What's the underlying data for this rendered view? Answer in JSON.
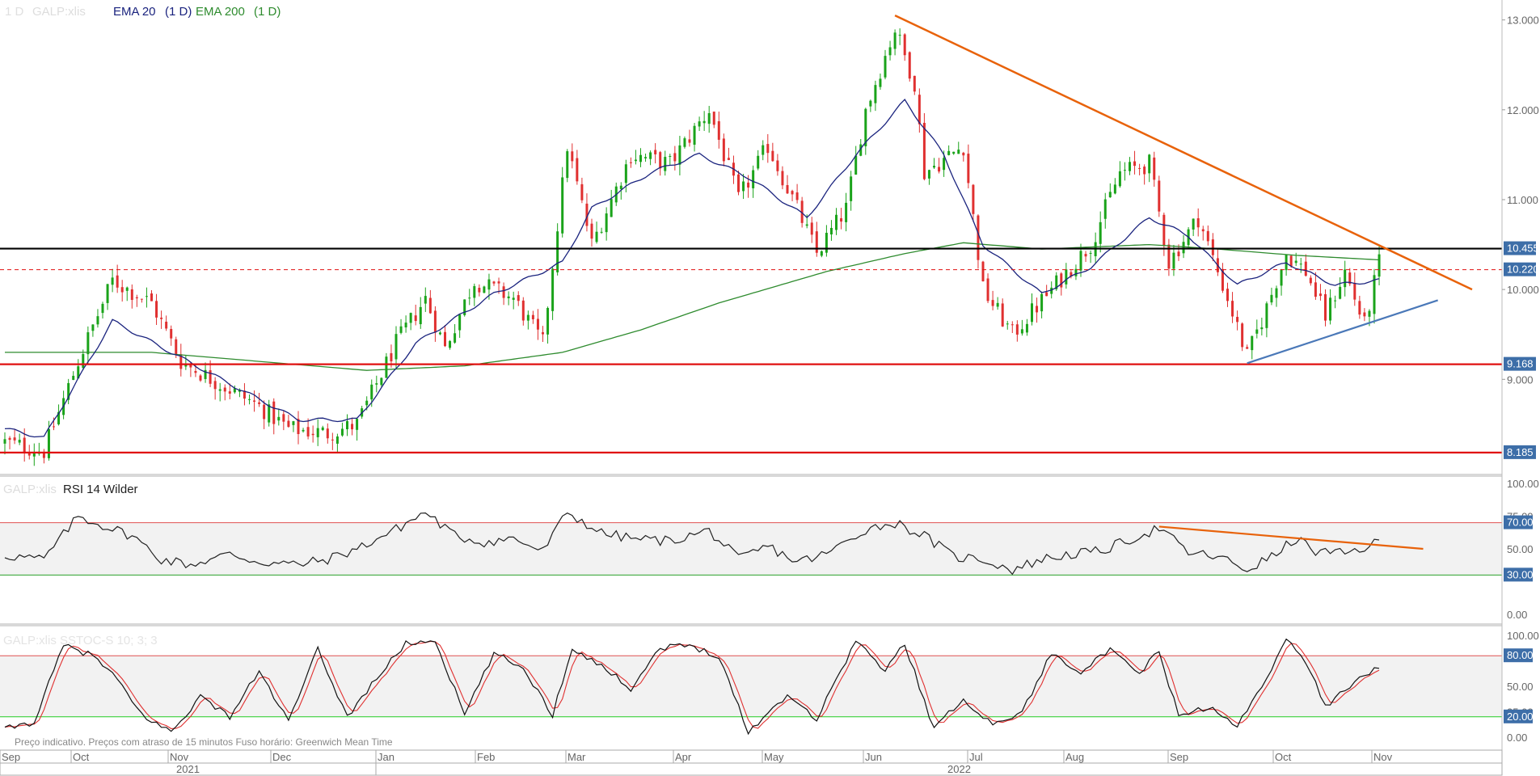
{
  "legend": {
    "timeframe": "1 D",
    "symbol": "GALP:xlis",
    "ema20_label": "EMA 20",
    "ema20_tf": "(1 D)",
    "ema200_label": "EMA 200",
    "ema200_tf": "(1 D)"
  },
  "rsi_panel": {
    "symbol": "GALP:xlis",
    "title": "RSI 14 Wilder"
  },
  "stoch_panel": {
    "title": "GALP:xlis SSTOC-S 10; 3; 3"
  },
  "footer_note": "Preço indicativo. Preços com atraso de 15 minutos    Fuso horário: Greenwich Mean Time",
  "colors": {
    "up_candle": "#1aa31a",
    "down_candle": "#e03030",
    "ema20": "#1a237e",
    "ema200": "#2e8b2e",
    "trendline_orange": "#e8620a",
    "trendline_blue": "#4a78b8",
    "resistance_black": "#000000",
    "support_red": "#e01010",
    "badge_blue": "#3d6ea8"
  },
  "chart_data": [
    {
      "type": "candlestick",
      "title": "",
      "ylim": [
        7.95,
        13.15
      ],
      "yticks": [
        "13.000",
        "12.000",
        "11.000",
        "10.000",
        "9.000"
      ],
      "ytick_values": [
        13.0,
        12.0,
        11.0,
        10.0,
        9.0
      ],
      "months": [
        "Sep",
        "Oct",
        "Nov",
        "Dec",
        "Jan",
        "Feb",
        "Mar",
        "Apr",
        "May",
        "Jun",
        "Jul",
        "Aug",
        "Sep",
        "Oct",
        "Nov"
      ],
      "years": [
        "2021",
        "2022"
      ],
      "price_anchors": [
        [
          0,
          8.3
        ],
        [
          8,
          8.2
        ],
        [
          15,
          9.2
        ],
        [
          22,
          10.1
        ],
        [
          30,
          9.85
        ],
        [
          36,
          9.2
        ],
        [
          44,
          8.95
        ],
        [
          52,
          8.7
        ],
        [
          58,
          8.45
        ],
        [
          66,
          8.4
        ],
        [
          72,
          8.5
        ],
        [
          80,
          9.4
        ],
        [
          86,
          9.9
        ],
        [
          90,
          9.35
        ],
        [
          96,
          10.1
        ],
        [
          104,
          9.9
        ],
        [
          110,
          9.4
        ],
        [
          115,
          11.6
        ],
        [
          120,
          10.5
        ],
        [
          128,
          11.5
        ],
        [
          136,
          11.4
        ],
        [
          144,
          12.0
        ],
        [
          150,
          11.0
        ],
        [
          156,
          11.6
        ],
        [
          162,
          10.9
        ],
        [
          166,
          10.4
        ],
        [
          172,
          10.9
        ],
        [
          176,
          12.0
        ],
        [
          182,
          12.9
        ],
        [
          186,
          12.3
        ],
        [
          188,
          11.3
        ],
        [
          196,
          11.6
        ],
        [
          200,
          10.0
        ],
        [
          206,
          9.5
        ],
        [
          214,
          10.0
        ],
        [
          222,
          10.5
        ],
        [
          228,
          11.3
        ],
        [
          234,
          11.4
        ],
        [
          238,
          10.3
        ],
        [
          244,
          10.8
        ],
        [
          250,
          9.9
        ],
        [
          254,
          9.25
        ],
        [
          258,
          9.8
        ],
        [
          262,
          10.4
        ],
        [
          266,
          10.2
        ],
        [
          270,
          9.7
        ],
        [
          274,
          10.2
        ],
        [
          278,
          9.6
        ],
        [
          281,
          10.3
        ]
      ],
      "ema20_anchors": [
        [
          0,
          8.45
        ],
        [
          8,
          8.35
        ],
        [
          22,
          9.65
        ],
        [
          34,
          9.3
        ],
        [
          46,
          8.95
        ],
        [
          60,
          8.55
        ],
        [
          72,
          8.55
        ],
        [
          84,
          9.4
        ],
        [
          100,
          9.95
        ],
        [
          114,
          10.3
        ],
        [
          120,
          10.9
        ],
        [
          132,
          11.3
        ],
        [
          142,
          11.5
        ],
        [
          152,
          11.25
        ],
        [
          164,
          10.8
        ],
        [
          174,
          11.5
        ],
        [
          184,
          12.1
        ],
        [
          192,
          11.5
        ],
        [
          200,
          10.5
        ],
        [
          212,
          9.95
        ],
        [
          222,
          10.25
        ],
        [
          234,
          10.8
        ],
        [
          242,
          10.6
        ],
        [
          252,
          10.05
        ],
        [
          262,
          10.3
        ],
        [
          272,
          10.05
        ],
        [
          281,
          10.1
        ]
      ],
      "ema200_anchors": [
        [
          0,
          9.3
        ],
        [
          30,
          9.3
        ],
        [
          52,
          9.2
        ],
        [
          74,
          9.1
        ],
        [
          94,
          9.15
        ],
        [
          114,
          9.3
        ],
        [
          130,
          9.55
        ],
        [
          146,
          9.85
        ],
        [
          168,
          10.2
        ],
        [
          184,
          10.4
        ],
        [
          196,
          10.52
        ],
        [
          212,
          10.45
        ],
        [
          234,
          10.5
        ],
        [
          248,
          10.45
        ],
        [
          264,
          10.38
        ],
        [
          281,
          10.33
        ]
      ],
      "levels": [
        {
          "value": 10.455,
          "label": "10.455",
          "style": "solid-black"
        },
        {
          "value": 10.22,
          "label": "10.220",
          "style": "dashed-red"
        },
        {
          "value": 9.168,
          "label": "9.168",
          "style": "solid-red"
        },
        {
          "value": 8.185,
          "label": "8.185",
          "style": "solid-red"
        }
      ],
      "trendlines": [
        {
          "color": "orange",
          "from": [
            182,
            13.05
          ],
          "to": [
            300,
            10.0
          ]
        },
        {
          "color": "blue",
          "from": [
            254,
            9.18
          ],
          "to": [
            293,
            9.88
          ]
        }
      ]
    },
    {
      "type": "line",
      "title": "RSI 14 Wilder",
      "ylim": [
        0,
        100
      ],
      "yticks": [
        "100.00",
        "75.00",
        "50.00",
        "0.00"
      ],
      "ytick_values": [
        100,
        75,
        50,
        0
      ],
      "levels": [
        {
          "value": 70,
          "label": "70.00"
        },
        {
          "value": 30,
          "label": "30.00"
        }
      ],
      "rsi_anchors": [
        [
          0,
          45
        ],
        [
          8,
          42
        ],
        [
          15,
          75
        ],
        [
          20,
          68
        ],
        [
          26,
          60
        ],
        [
          32,
          42
        ],
        [
          38,
          38
        ],
        [
          46,
          46
        ],
        [
          52,
          40
        ],
        [
          60,
          38
        ],
        [
          66,
          42
        ],
        [
          72,
          50
        ],
        [
          80,
          65
        ],
        [
          86,
          78
        ],
        [
          92,
          60
        ],
        [
          98,
          55
        ],
        [
          104,
          58
        ],
        [
          110,
          48
        ],
        [
          115,
          78
        ],
        [
          122,
          62
        ],
        [
          128,
          58
        ],
        [
          136,
          56
        ],
        [
          144,
          64
        ],
        [
          150,
          42
        ],
        [
          156,
          52
        ],
        [
          162,
          40
        ],
        [
          168,
          46
        ],
        [
          176,
          65
        ],
        [
          182,
          70
        ],
        [
          188,
          60
        ],
        [
          194,
          44
        ],
        [
          200,
          42
        ],
        [
          206,
          34
        ],
        [
          212,
          42
        ],
        [
          218,
          46
        ],
        [
          224,
          48
        ],
        [
          232,
          60
        ],
        [
          236,
          66
        ],
        [
          242,
          47
        ],
        [
          248,
          44
        ],
        [
          254,
          34
        ],
        [
          260,
          46
        ],
        [
          264,
          58
        ],
        [
          268,
          48
        ],
        [
          274,
          46
        ],
        [
          281,
          55
        ]
      ],
      "trendlines": [
        {
          "color": "orange",
          "from": [
            236,
            67
          ],
          "to": [
            290,
            50
          ]
        }
      ]
    },
    {
      "type": "line",
      "title": "GALP:xlis SSTOC-S 10; 3; 3",
      "ylim": [
        0,
        100
      ],
      "yticks": [
        "100.00",
        "50.00",
        "25.00",
        "0.00"
      ],
      "ytick_values": [
        100,
        50,
        25,
        0
      ],
      "levels": [
        {
          "value": 80,
          "label": "80.00"
        },
        {
          "value": 20,
          "label": "20.00"
        }
      ],
      "k_anchors": [
        [
          0,
          8
        ],
        [
          6,
          15
        ],
        [
          12,
          90
        ],
        [
          18,
          80
        ],
        [
          22,
          62
        ],
        [
          28,
          22
        ],
        [
          34,
          5
        ],
        [
          40,
          40
        ],
        [
          46,
          20
        ],
        [
          52,
          65
        ],
        [
          58,
          15
        ],
        [
          64,
          86
        ],
        [
          70,
          20
        ],
        [
          76,
          58
        ],
        [
          82,
          92
        ],
        [
          88,
          95
        ],
        [
          94,
          22
        ],
        [
          100,
          82
        ],
        [
          106,
          68
        ],
        [
          112,
          22
        ],
        [
          116,
          88
        ],
        [
          122,
          70
        ],
        [
          128,
          48
        ],
        [
          134,
          88
        ],
        [
          140,
          90
        ],
        [
          146,
          80
        ],
        [
          152,
          5
        ],
        [
          160,
          42
        ],
        [
          166,
          18
        ],
        [
          174,
          95
        ],
        [
          180,
          65
        ],
        [
          184,
          92
        ],
        [
          190,
          8
        ],
        [
          196,
          38
        ],
        [
          202,
          12
        ],
        [
          208,
          25
        ],
        [
          214,
          82
        ],
        [
          220,
          65
        ],
        [
          226,
          85
        ],
        [
          232,
          62
        ],
        [
          236,
          85
        ],
        [
          240,
          20
        ],
        [
          246,
          30
        ],
        [
          252,
          10
        ],
        [
          258,
          60
        ],
        [
          262,
          95
        ],
        [
          266,
          75
        ],
        [
          270,
          30
        ],
        [
          276,
          55
        ],
        [
          281,
          70
        ]
      ]
    }
  ]
}
